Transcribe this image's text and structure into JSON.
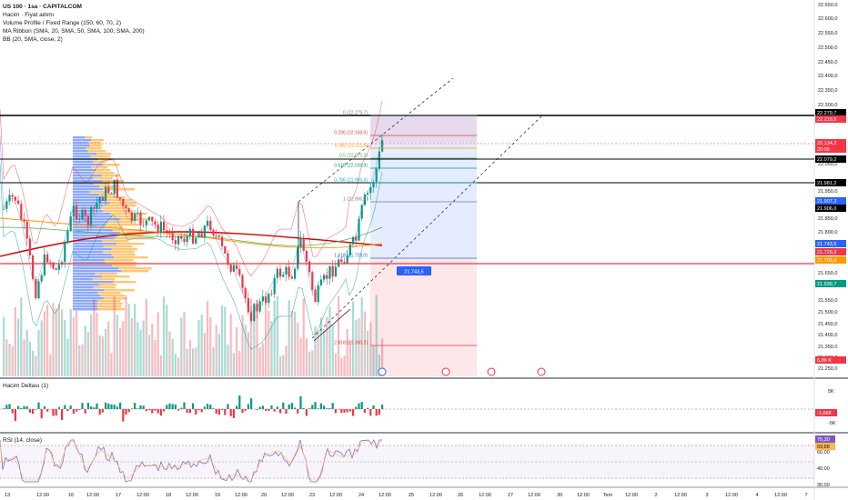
{
  "legend": {
    "symbol": "US 100 · 1sa · CAPITALCOM",
    "line2": "Hacim · Fiyat adımı",
    "line3": "Volume Profile / Fixed Range (150, 60, 70, 2)",
    "line4": "MA Ribbon (SMA, 20, SMA, 50, SMA, 100, SMA, 200)",
    "line5": "BB (20, SMA, close, 2)"
  },
  "panes": {
    "delta_label": "Hacim Deltası (1)",
    "rsi_label": "RSI (14, close)"
  },
  "price_axis": [
    "22.650,0",
    "22.600,0",
    "22.550,0",
    "22.500,0",
    "22.450,0",
    "22.400,0",
    "22.350,0",
    "22.300,0",
    "22.250,0",
    "22.150,0",
    "22.050,0",
    "21.950,0",
    "21.850,0",
    "21.800,0",
    "21.750,0",
    "21.650,0",
    "21.550,0",
    "21.500,0",
    "21.450,0",
    "21.400,0",
    "21.350,0",
    "21.300,0",
    "21.250,0"
  ],
  "price_badges": [
    {
      "text": "22.279,7",
      "bg": "#000000",
      "fg": "#ffffff"
    },
    {
      "text": "22.218,9",
      "bg": "#f23645",
      "fg": "#ffffff"
    },
    {
      "text": "22.134,2",
      "bg": "#f23645",
      "fg": "#ffffff"
    },
    {
      "text": "20:06",
      "bg": "#f23645",
      "fg": "#ffffff"
    },
    {
      "text": "22.079,2",
      "bg": "#000000",
      "fg": "#ffffff"
    },
    {
      "text": "21.981,2",
      "bg": "#000000",
      "fg": "#ffffff"
    },
    {
      "text": "21.907,3",
      "bg": "#2962ff",
      "fg": "#ffffff"
    },
    {
      "text": "21.906,0",
      "bg": "#000000",
      "fg": "#ffffff"
    },
    {
      "text": "21.743,5",
      "bg": "#2962ff",
      "fg": "#ffffff"
    },
    {
      "text": "21.729,2",
      "bg": "#f23645",
      "fg": "#ffffff"
    },
    {
      "text": "21.706,8",
      "bg": "#ff9800",
      "fg": "#ffffff"
    },
    {
      "text": "21.599,7",
      "bg": "#089981",
      "fg": "#ffffff"
    },
    {
      "text": "6,89 K",
      "bg": "#f23645",
      "fg": "#ffffff"
    }
  ],
  "fib_levels": [
    {
      "label": "0 (22.279,7)",
      "color": "#787b86"
    },
    {
      "label": "0.236 (22.168,9)",
      "color": "#f23645"
    },
    {
      "label": "0.382 (22.111,9)",
      "color": "#ff9800"
    },
    {
      "label": "0.5 (22.072,2)",
      "color": "#4caf50"
    },
    {
      "label": "0.618 (22.028,9)",
      "color": "#089981"
    },
    {
      "label": "0.786 (21.966,4)",
      "color": "#00bcd4"
    },
    {
      "label": "1 (21.906,0)",
      "color": "#787b86"
    },
    {
      "label": "1.618 (21.728,0)",
      "color": "#2962ff"
    },
    {
      "label": "2.618 (21.360,2)",
      "color": "#f23645"
    }
  ],
  "range_label": "21.743,5",
  "delta_axis": [
    "5K",
    "-1,68K",
    "-5K"
  ],
  "rsi_axis": [
    "75,30",
    "69,88",
    "60,00",
    "40,00",
    "30,00"
  ],
  "time_axis": [
    "13",
    "12:00",
    "16",
    "12:00",
    "17",
    "12:00",
    "18",
    "12:00",
    "19",
    "12:00",
    "20",
    "12:00",
    "23",
    "12:00",
    "24",
    "12:00",
    "25",
    "12:00",
    "26",
    "12:00",
    "27",
    "12:00",
    "30",
    "12:00",
    "Tem",
    "12:00",
    "2",
    "12:00",
    "3",
    "12:00",
    "4",
    "12:00",
    "7"
  ],
  "colors": {
    "up": "#089981",
    "down": "#f23645",
    "bb": "#2962ff",
    "ma_red": "#d50000",
    "ma_orange": "#ff9800",
    "vp_blue": "#2962ff",
    "vp_orange": "#ff9800",
    "rsi": "#7e57c2"
  }
}
